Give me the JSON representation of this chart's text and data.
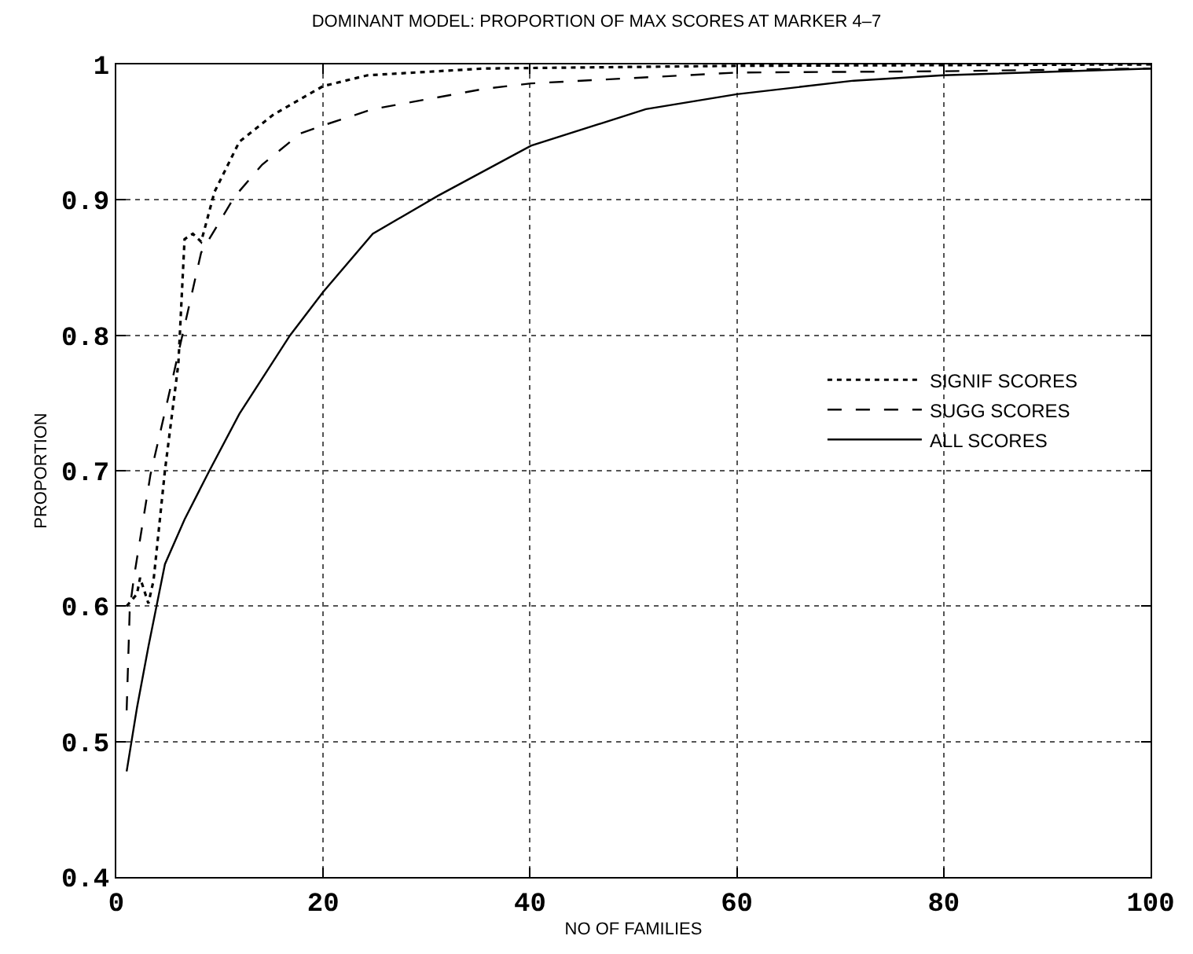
{
  "chart_data": {
    "type": "line",
    "title": "DOMINANT MODEL: PROPORTION OF MAX SCORES AT MARKER 4–7",
    "xlabel": "NO OF FAMILIES",
    "ylabel": "PROPORTION",
    "xlim": [
      0,
      100
    ],
    "xticks": [
      0,
      20,
      40,
      60,
      80,
      100
    ],
    "ylim": [
      0.4,
      1
    ],
    "yticks": [
      0.4,
      0.5,
      0.6,
      0.7,
      0.8,
      0.9,
      1
    ],
    "grid": true,
    "legend": "right",
    "marker": "none",
    "series": [
      {
        "name": "SIGNIF SCORES",
        "color": "#000000",
        "line_style": "dotted",
        "x": [
          1,
          2,
          2.3,
          3.1,
          3.6,
          4.7,
          6.0,
          6.6,
          7.4,
          8.2,
          9.5,
          11.9,
          15.2,
          20,
          24.3,
          35.6,
          60,
          100
        ],
        "values": [
          0.6,
          0.609,
          0.621,
          0.602,
          0.619,
          0.7,
          0.779,
          0.871,
          0.875,
          0.869,
          0.906,
          0.943,
          0.963,
          0.984,
          0.992,
          0.997,
          0.999,
          1.0
        ]
      },
      {
        "name": "SUGG SCORES",
        "color": "#000000",
        "line_style": "dashed",
        "x": [
          1,
          1.3,
          1.7,
          3.3,
          4.9,
          6.6,
          8.2,
          11.4,
          14.1,
          17.8,
          20,
          24.8,
          35.6,
          40.1,
          60,
          80,
          100
        ],
        "values": [
          0.523,
          0.598,
          0.621,
          0.697,
          0.75,
          0.807,
          0.861,
          0.902,
          0.926,
          0.949,
          0.955,
          0.967,
          0.982,
          0.986,
          0.994,
          0.995,
          0.997
        ]
      },
      {
        "name": "ALL SCORES",
        "color": "#000000",
        "line_style": "solid",
        "x": [
          1,
          2,
          3.1,
          4.7,
          6.6,
          9,
          11.9,
          16.8,
          20,
          24.8,
          31.1,
          40.1,
          51.2,
          60,
          71.3,
          80,
          100
        ],
        "values": [
          0.478,
          0.525,
          0.57,
          0.631,
          0.664,
          0.7,
          0.742,
          0.8,
          0.832,
          0.875,
          0.903,
          0.94,
          0.967,
          0.978,
          0.988,
          0.992,
          0.997
        ]
      }
    ]
  }
}
